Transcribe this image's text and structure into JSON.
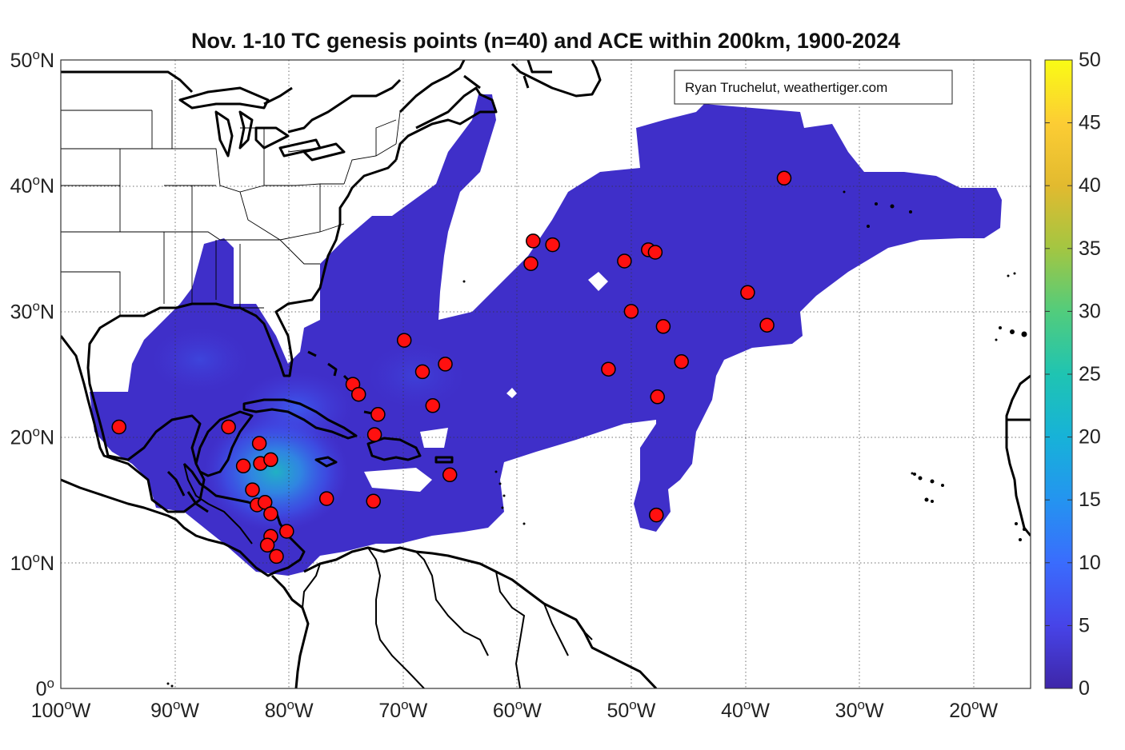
{
  "title": "Nov. 1-10 TC genesis points (n=40) and ACE within 200km, 1900-2024",
  "credit": "Ryan Truchelut, weathertiger.com",
  "axes": {
    "lon_labels": [
      "100°W",
      "90°W",
      "80°W",
      "70°W",
      "60°W",
      "50°W",
      "40°W",
      "30°W",
      "20°W"
    ],
    "lat_labels": [
      "0°",
      "10°N",
      "20°N",
      "30°N",
      "40°N",
      "50°N"
    ]
  },
  "colorbar": {
    "ticks": [
      "0",
      "5",
      "10",
      "15",
      "20",
      "25",
      "30",
      "35",
      "40",
      "45",
      "50"
    ],
    "colormap": "parula",
    "min": 0,
    "max": 50
  },
  "colors": {
    "field_base": "#3f2fc9",
    "point_fill": "#ff1010",
    "point_stroke": "#000000"
  },
  "chart_data": {
    "type": "scatter",
    "title": "Nov. 1-10 TC genesis points (n=40) and ACE within 200km, 1900-2024",
    "xlabel": "",
    "ylabel": "",
    "xlim": [
      -100,
      -15
    ],
    "ylim": [
      0,
      50
    ],
    "grid": true,
    "series": [
      {
        "points": [
          {
            "lon": -94.9,
            "lat": 20.8
          },
          {
            "lon": -85.3,
            "lat": 20.8
          },
          {
            "lon": -84.0,
            "lat": 17.7
          },
          {
            "lon": -82.6,
            "lat": 19.5
          },
          {
            "lon": -82.5,
            "lat": 17.9
          },
          {
            "lon": -81.6,
            "lat": 18.2
          },
          {
            "lon": -83.2,
            "lat": 15.8
          },
          {
            "lon": -82.8,
            "lat": 14.6
          },
          {
            "lon": -82.1,
            "lat": 14.8
          },
          {
            "lon": -81.6,
            "lat": 13.9
          },
          {
            "lon": -81.6,
            "lat": 12.1
          },
          {
            "lon": -80.2,
            "lat": 12.5
          },
          {
            "lon": -81.9,
            "lat": 11.4
          },
          {
            "lon": -81.1,
            "lat": 10.5
          },
          {
            "lon": -76.7,
            "lat": 15.1
          },
          {
            "lon": -72.6,
            "lat": 14.9
          },
          {
            "lon": -74.4,
            "lat": 24.2
          },
          {
            "lon": -73.9,
            "lat": 23.4
          },
          {
            "lon": -72.2,
            "lat": 21.8
          },
          {
            "lon": -72.5,
            "lat": 20.2
          },
          {
            "lon": -69.9,
            "lat": 27.7
          },
          {
            "lon": -68.3,
            "lat": 25.2
          },
          {
            "lon": -66.3,
            "lat": 25.8
          },
          {
            "lon": -67.4,
            "lat": 22.5
          },
          {
            "lon": -65.9,
            "lat": 17.0
          },
          {
            "lon": -58.6,
            "lat": 35.6
          },
          {
            "lon": -56.9,
            "lat": 35.3
          },
          {
            "lon": -58.8,
            "lat": 33.8
          },
          {
            "lon": -50.6,
            "lat": 34.0
          },
          {
            "lon": -48.5,
            "lat": 34.9
          },
          {
            "lon": -47.9,
            "lat": 34.7
          },
          {
            "lon": -50.0,
            "lat": 30.0
          },
          {
            "lon": -47.2,
            "lat": 28.8
          },
          {
            "lon": -52.0,
            "lat": 25.4
          },
          {
            "lon": -45.6,
            "lat": 26.0
          },
          {
            "lon": -47.7,
            "lat": 23.2
          },
          {
            "lon": -47.8,
            "lat": 13.8
          },
          {
            "lon": -39.8,
            "lat": 31.5
          },
          {
            "lon": -38.1,
            "lat": 28.9
          },
          {
            "lon": -36.6,
            "lat": 40.6
          }
        ]
      }
    ]
  }
}
